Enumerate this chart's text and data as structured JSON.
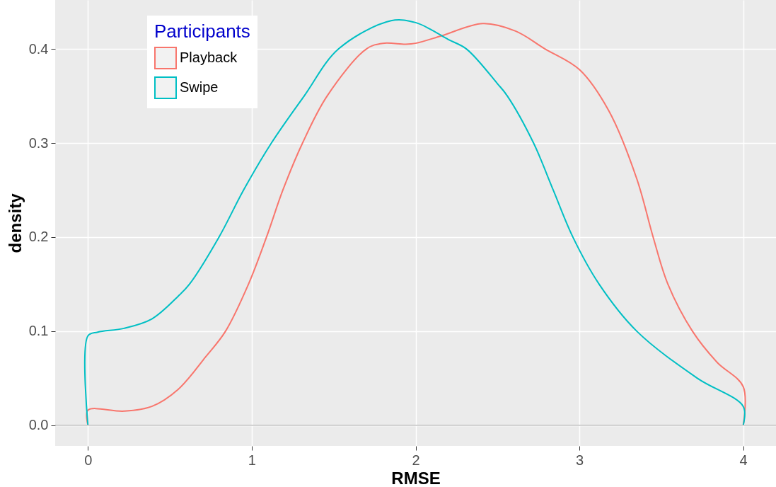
{
  "chart_data": {
    "type": "line",
    "xlabel": "RMSE",
    "ylabel": "density",
    "legend_title": "Participants",
    "xlim": [
      -0.2,
      4.2
    ],
    "xticks": [
      0,
      1,
      2,
      3,
      4
    ],
    "ylim": [
      -0.022,
      0.452
    ],
    "yticks": [
      {
        "value": 0,
        "label": "0.0"
      },
      0.1,
      0.2,
      0.3,
      0.4
    ],
    "grid": true,
    "legend": "top left",
    "ref_lines": [
      {
        "axis": "y",
        "value": 0,
        "color": "#bebebe"
      }
    ],
    "series": [
      {
        "name": "Playback",
        "color": "#f8766d",
        "x": [
          0,
          0,
          0.22,
          0.39,
          0.55,
          0.72,
          0.84,
          0.98,
          1.09,
          1.19,
          1.31,
          1.46,
          1.7,
          1.8,
          1.94,
          2.0,
          2.16,
          2.41,
          2.61,
          2.79,
          3.0,
          3.18,
          3.35,
          3.45,
          3.54,
          3.69,
          3.84,
          4,
          4
        ],
        "values": [
          0,
          0.016,
          0.015,
          0.02,
          0.038,
          0.073,
          0.1,
          0.15,
          0.2,
          0.25,
          0.3,
          0.35,
          0.4,
          0.406,
          0.405,
          0.406,
          0.414,
          0.427,
          0.419,
          0.4,
          0.378,
          0.334,
          0.262,
          0.2,
          0.15,
          0.1,
          0.067,
          0.041,
          0
        ]
      },
      {
        "name": "Swipe",
        "color": "#00bfc4",
        "x": [
          0,
          0,
          0.06,
          0.22,
          0.39,
          0.55,
          0.62,
          0.8,
          0.95,
          1.12,
          1.32,
          1.53,
          1.85,
          2.0,
          2.1,
          2.2,
          2.31,
          2.5,
          2.56,
          2.72,
          2.84,
          2.96,
          3.12,
          3.35,
          3.72,
          4,
          4
        ],
        "values": [
          0,
          0.095,
          0.099,
          0.103,
          0.113,
          0.137,
          0.15,
          0.2,
          0.25,
          0.3,
          0.35,
          0.4,
          0.43,
          0.428,
          0.42,
          0.41,
          0.4,
          0.363,
          0.35,
          0.3,
          0.25,
          0.2,
          0.15,
          0.1,
          0.05,
          0.02,
          0
        ]
      }
    ]
  }
}
